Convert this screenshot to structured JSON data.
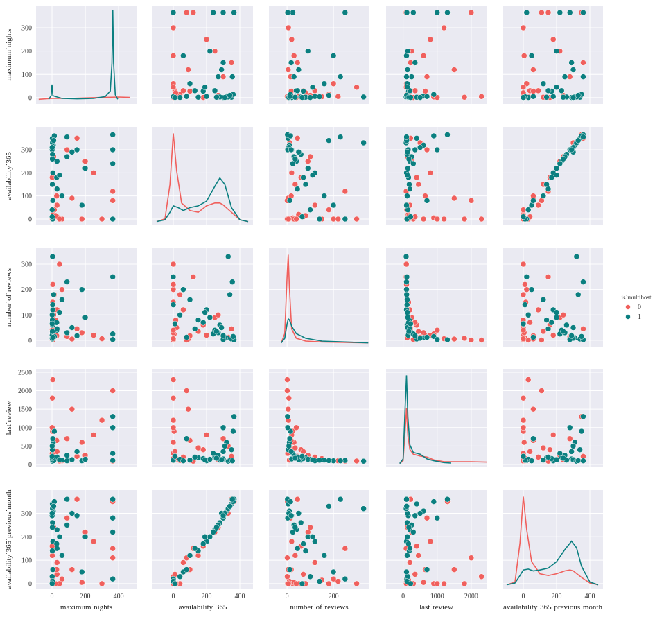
{
  "chart_data": {
    "type": "pairplot",
    "legend_title": "is˙multihost",
    "legend_position": "right",
    "kde_ylim": [
      -0.04,
      1.02
    ],
    "variables": [
      {
        "label": "maximum˙nights",
        "xlim": [
          -96,
          508
        ],
        "xticks": [
          0,
          200,
          400
        ],
        "ylim": [
          -27,
          395
        ],
        "yticks": [
          0,
          100,
          200,
          300
        ]
      },
      {
        "label": "availability˙365",
        "xlim": [
          -125,
          479
        ],
        "xticks": [
          0,
          200,
          400
        ],
        "ylim": [
          -27,
          399
        ],
        "yticks": [
          0,
          100,
          200,
          300
        ]
      },
      {
        "label": "number˙of˙reviews",
        "xlim": [
          -78,
          355
        ],
        "xticks": [
          0,
          200
        ],
        "ylim": [
          -25,
          363
        ],
        "yticks": [
          0,
          100,
          200,
          300
        ]
      },
      {
        "label": "last˙review",
        "xlim": [
          -500,
          2450
        ],
        "xticks": [
          0,
          1000,
          2000
        ],
        "ylim": [
          -75,
          2593
        ],
        "yticks": [
          0,
          500,
          1000,
          1500,
          2000,
          2500
        ]
      },
      {
        "label": "availability˙365˙previous˙month",
        "xlim": [
          -125,
          479
        ],
        "xticks": [
          0,
          200,
          400
        ],
        "ylim": [
          -21,
          399
        ],
        "yticks": [
          0,
          100,
          200,
          300
        ]
      }
    ],
    "series": [
      {
        "name": "0",
        "color": "#f0605d",
        "columns": [
          [
            1,
            2,
            3,
            5,
            7,
            30,
            2,
            1,
            60,
            90,
            120,
            180,
            200,
            365,
            365,
            1,
            3,
            14,
            30,
            250,
            300,
            4,
            2,
            10,
            45,
            365,
            150,
            21,
            5,
            28
          ],
          [
            0,
            0,
            5,
            0,
            20,
            60,
            0,
            180,
            0,
            300,
            90,
            0,
            250,
            365,
            120,
            0,
            330,
            40,
            10,
            200,
            0,
            0,
            150,
            270,
            0,
            80,
            350,
            15,
            0,
            100
          ],
          [
            3,
            10,
            25,
            1,
            50,
            120,
            8,
            60,
            200,
            15,
            5,
            30,
            90,
            2,
            250,
            40,
            12,
            180,
            70,
            20,
            6,
            150,
            35,
            100,
            300,
            1,
            45,
            80,
            220,
            18
          ],
          [
            300,
            120,
            900,
            2300,
            150,
            200,
            1800,
            400,
            100,
            700,
            1500,
            600,
            250,
            1300,
            90,
            1000,
            500,
            110,
            350,
            800,
            1200,
            160,
            450,
            130,
            95,
            2000,
            220,
            180,
            100,
            650
          ],
          [
            0,
            10,
            0,
            30,
            0,
            90,
            0,
            160,
            20,
            280,
            60,
            5,
            220,
            350,
            150,
            0,
            300,
            0,
            40,
            180,
            0,
            15,
            120,
            240,
            0,
            110,
            360,
            0,
            10,
            60
          ]
        ],
        "kde": [
          {
            "x": [
              -80,
              0,
              100,
              200,
              300,
              400,
              470
            ],
            "y": [
              0.01,
              0.02,
              0.02,
              0.025,
              0.03,
              0.035,
              0.03
            ]
          },
          {
            "x": [
              -100,
              -50,
              -20,
              0,
              20,
              50,
              100,
              150,
              200,
              250,
              280,
              300,
              350,
              400,
              450
            ],
            "y": [
              0,
              0.03,
              0.4,
              0.95,
              0.55,
              0.2,
              0.12,
              0.1,
              0.17,
              0.2,
              0.2,
              0.18,
              0.1,
              0.02,
              0
            ]
          },
          {
            "x": [
              -25,
              -10,
              0,
              5,
              10,
              20,
              40,
              80,
              150,
              250,
              350
            ],
            "y": [
              0,
              0.1,
              0.7,
              0.95,
              0.6,
              0.15,
              0.05,
              0.02,
              0.01,
              0.005,
              0
            ]
          },
          {
            "x": [
              -100,
              0,
              60,
              100,
              140,
              200,
              300,
              500,
              700,
              900,
              1200,
              1500,
              2000,
              2450
            ],
            "y": [
              0,
              0.03,
              0.35,
              0.6,
              0.3,
              0.15,
              0.1,
              0.08,
              0.07,
              0.04,
              0.02,
              0.02,
              0.02,
              0.015
            ]
          },
          {
            "x": [
              -100,
              -50,
              -20,
              0,
              20,
              50,
              100,
              150,
              200,
              250,
              280,
              300,
              350,
              400,
              450
            ],
            "y": [
              0,
              0.03,
              0.45,
              0.95,
              0.6,
              0.25,
              0.12,
              0.1,
              0.12,
              0.15,
              0.16,
              0.15,
              0.08,
              0.02,
              0
            ]
          }
        ]
      },
      {
        "name": "1",
        "color": "#0b7f80",
        "columns": [
          [
            1,
            2,
            3,
            5,
            30,
            365,
            365,
            2,
            7,
            60,
            90,
            1,
            14,
            120,
            180,
            3,
            28,
            365,
            4,
            1,
            200,
            30,
            10,
            5,
            2,
            365,
            45,
            1,
            90,
            150
          ],
          [
            300,
            350,
            280,
            200,
            250,
            365,
            0,
            150,
            320,
            100,
            270,
            40,
            360,
            290,
            60,
            330,
            180,
            240,
            0,
            310,
            220,
            130,
            340,
            80,
            260,
            300,
            190,
            10,
            355,
            300
          ],
          [
            20,
            5,
            60,
            120,
            40,
            2,
            250,
            80,
            10,
            160,
            30,
            100,
            15,
            50,
            200,
            330,
            70,
            25,
            140,
            8,
            90,
            45,
            180,
            12,
            35,
            3,
            110,
            65,
            230,
            18
          ],
          [
            150,
            400,
            120,
            100,
            200,
            1300,
            110,
            180,
            600,
            120,
            250,
            140,
            900,
            130,
            100,
            90,
            160,
            300,
            115,
            500,
            140,
            200,
            105,
            700,
            170,
            1000,
            125,
            220,
            100,
            350
          ],
          [
            290,
            340,
            260,
            180,
            230,
            360,
            20,
            140,
            310,
            120,
            250,
            30,
            350,
            300,
            50,
            320,
            170,
            220,
            10,
            300,
            200,
            150,
            330,
            60,
            240,
            280,
            200,
            0,
            360,
            290
          ]
        ],
        "kde": [
          {
            "x": [
              -20,
              -5,
              0,
              5,
              20,
              60,
              150,
              250,
              320,
              350,
              360,
              365,
              370,
              380,
              395
            ],
            "y": [
              0.01,
              0.05,
              0.17,
              0.05,
              0.04,
              0.02,
              0.015,
              0.02,
              0.04,
              0.1,
              0.4,
              0.97,
              0.4,
              0.06,
              0.01
            ]
          },
          {
            "x": [
              -100,
              -50,
              -20,
              0,
              30,
              60,
              100,
              150,
              200,
              250,
              280,
              310,
              350,
              400,
              450
            ],
            "y": [
              0,
              0.02,
              0.1,
              0.17,
              0.15,
              0.12,
              0.15,
              0.17,
              0.22,
              0.38,
              0.47,
              0.4,
              0.15,
              0.02,
              0
            ]
          },
          {
            "x": [
              -25,
              -10,
              0,
              5,
              10,
              20,
              40,
              80,
              150,
              250,
              350
            ],
            "y": [
              0,
              0.05,
              0.2,
              0.26,
              0.25,
              0.18,
              0.1,
              0.05,
              0.02,
              0.01,
              0
            ]
          },
          {
            "x": [
              -100,
              0,
              60,
              100,
              140,
              200,
              300,
              500,
              700,
              900,
              1200,
              1400
            ],
            "y": [
              0,
              0.05,
              0.6,
              0.95,
              0.5,
              0.2,
              0.12,
              0.1,
              0.05,
              0.03,
              0.01,
              0.005
            ]
          },
          {
            "x": [
              -100,
              -50,
              -20,
              0,
              30,
              60,
              100,
              150,
              200,
              250,
              290,
              320,
              350,
              400,
              450
            ],
            "y": [
              0,
              0.02,
              0.1,
              0.16,
              0.17,
              0.15,
              0.16,
              0.18,
              0.25,
              0.38,
              0.47,
              0.4,
              0.2,
              0.03,
              0
            ]
          }
        ]
      }
    ]
  }
}
